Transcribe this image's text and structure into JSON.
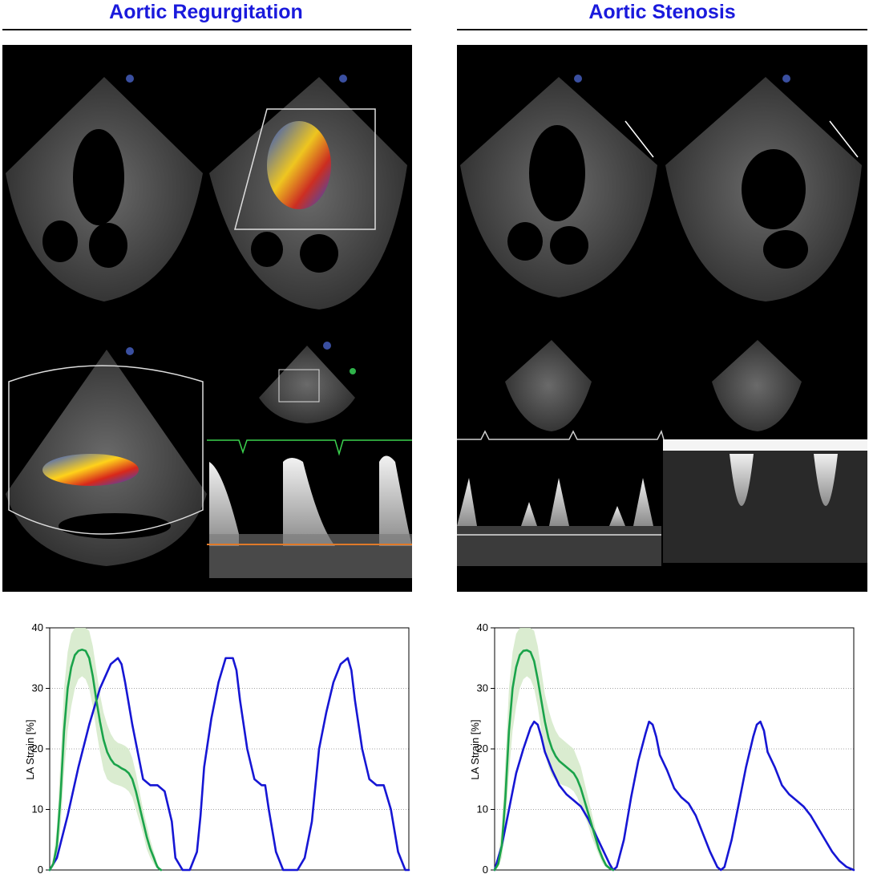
{
  "panels": [
    {
      "title": "Aortic Regurgitation"
    },
    {
      "title": "Aortic Stenosis"
    }
  ],
  "chart_data": [
    {
      "type": "line",
      "title": "",
      "xlabel": "",
      "ylabel": "LA Strain [%]",
      "ylim": [
        0,
        40
      ],
      "xlim": [
        0,
        100
      ],
      "yticks": [
        0,
        10,
        20,
        30,
        40
      ],
      "grid": true,
      "series": [
        {
          "color": "#1616d4",
          "x": [
            0,
            2,
            5,
            8,
            11,
            14,
            17,
            19,
            20,
            21,
            23,
            25,
            26,
            28,
            30,
            32,
            34,
            35,
            37,
            39,
            41,
            42,
            43,
            45,
            47,
            49,
            51,
            52,
            53,
            55,
            57,
            59,
            60,
            61,
            63,
            65,
            67,
            69,
            71,
            73,
            74,
            75,
            77,
            79,
            81,
            83,
            84,
            85,
            87,
            89,
            91,
            93,
            95,
            97,
            99,
            100
          ],
          "y": [
            0,
            2,
            9,
            17,
            24,
            30,
            34,
            35,
            34,
            31,
            24,
            18,
            15,
            14,
            14,
            13,
            8,
            2,
            0,
            0,
            3,
            9,
            17,
            25,
            31,
            35,
            35,
            33,
            28,
            20,
            15,
            14,
            14,
            10,
            3,
            0,
            0,
            0,
            2,
            8,
            14,
            20,
            26,
            31,
            34,
            35,
            33,
            28,
            20,
            15,
            14,
            14,
            10,
            3,
            0,
            0
          ]
        },
        {
          "color": "#1aa34a",
          "x": [
            0,
            1,
            2,
            3,
            4,
            5,
            6,
            7,
            8,
            9,
            10,
            11,
            12,
            13,
            14,
            15,
            16,
            17,
            18,
            19,
            20,
            21,
            22,
            23,
            24,
            25,
            26,
            27,
            28,
            29,
            29.5,
            30,
            30.5,
            31
          ],
          "y": [
            0,
            1,
            4,
            12,
            23,
            30,
            33.5,
            35.5,
            36.2,
            36.4,
            36.2,
            35,
            32,
            28,
            24.5,
            21.5,
            19.5,
            18.3,
            17.5,
            17.2,
            16.8,
            16.5,
            16,
            15,
            13,
            10.5,
            8,
            5.5,
            3.5,
            2,
            1.2,
            0.5,
            0.2,
            0
          ]
        },
        {
          "color": "#d4e9c8",
          "band": true,
          "x": [
            0,
            1,
            2,
            3,
            4,
            5,
            6,
            7,
            8,
            9,
            10,
            11,
            12,
            13,
            14,
            15,
            16,
            17,
            18,
            19,
            20,
            21,
            22,
            23,
            24,
            25,
            26,
            27,
            28,
            29,
            29.5,
            30,
            30.5,
            31
          ],
          "y_low": [
            0,
            0.5,
            2,
            7,
            16,
            23,
            27,
            30,
            31.5,
            32,
            31.5,
            30,
            27,
            23,
            19.5,
            16.5,
            15,
            14.5,
            14.2,
            14,
            13.8,
            13.5,
            13,
            12,
            10,
            8,
            6,
            3.5,
            2,
            1,
            0.5,
            0.2,
            0,
            0
          ],
          "y_high": [
            0,
            2,
            7,
            18,
            30,
            36,
            39,
            40,
            40,
            40,
            40,
            39.5,
            37,
            33,
            29,
            26,
            24,
            22.5,
            21.5,
            21,
            20.8,
            20.5,
            20,
            18.5,
            16,
            13,
            10,
            7.5,
            5,
            3,
            2,
            1,
            0.5,
            0
          ]
        }
      ]
    },
    {
      "type": "line",
      "title": "",
      "xlabel": "",
      "ylabel": "LA Strain [%]",
      "ylim": [
        0,
        40
      ],
      "xlim": [
        0,
        100
      ],
      "yticks": [
        0,
        10,
        20,
        30,
        40
      ],
      "grid": true,
      "series": [
        {
          "color": "#1616d4",
          "x": [
            0,
            2,
            4,
            6,
            8,
            10,
            11,
            12,
            13,
            14,
            15,
            16,
            18,
            20,
            22,
            24,
            26,
            28,
            30,
            32,
            33,
            34,
            36,
            38,
            40,
            42,
            43,
            44,
            45,
            46,
            48,
            50,
            52,
            54,
            56,
            58,
            60,
            62,
            63,
            64,
            66,
            68,
            70,
            72,
            73,
            74,
            75,
            76,
            78,
            80,
            82,
            84,
            86,
            88,
            90,
            92,
            94,
            96,
            98,
            100
          ],
          "y": [
            0,
            4,
            10,
            16,
            20,
            23.5,
            24.5,
            24,
            22,
            19.5,
            18,
            16.5,
            14,
            12.5,
            11.5,
            10.5,
            8.5,
            6,
            3.5,
            1,
            0,
            0.5,
            5,
            12,
            18,
            22.5,
            24.5,
            24,
            22,
            19,
            16.5,
            13.5,
            12,
            11,
            9,
            6,
            3,
            0.5,
            0,
            0.5,
            5,
            11,
            17,
            22,
            24,
            24.5,
            23,
            19.5,
            17,
            14,
            12.5,
            11.5,
            10.5,
            9,
            7,
            5,
            3,
            1.5,
            0.5,
            0
          ]
        },
        {
          "color": "#1aa34a",
          "x": [
            0,
            1,
            2,
            3,
            4,
            5,
            6,
            7,
            8,
            9,
            10,
            11,
            12,
            13,
            14,
            15,
            16,
            17,
            18,
            19,
            20,
            21,
            22,
            23,
            24,
            25,
            26,
            27,
            28,
            29,
            30,
            31,
            32,
            33
          ],
          "y": [
            0,
            1,
            4,
            12,
            23,
            30,
            33.5,
            35.5,
            36.2,
            36.3,
            36,
            34.5,
            31.5,
            28,
            24.5,
            21.8,
            20,
            18.8,
            18,
            17.5,
            17,
            16.5,
            16,
            15,
            13.5,
            11.5,
            9.5,
            7.5,
            5.5,
            3.5,
            2,
            0.8,
            0.3,
            0
          ]
        },
        {
          "color": "#d4e9c8",
          "band": true,
          "x": [
            0,
            1,
            2,
            3,
            4,
            5,
            6,
            7,
            8,
            9,
            10,
            11,
            12,
            13,
            14,
            15,
            16,
            17,
            18,
            19,
            20,
            21,
            22,
            23,
            24,
            25,
            26,
            27,
            28,
            29,
            30,
            31,
            32,
            33
          ],
          "y_low": [
            0,
            0.5,
            2,
            7,
            16,
            23,
            27,
            30,
            31.5,
            32,
            31.5,
            30,
            27,
            23,
            19.5,
            17,
            15.5,
            14.8,
            14.3,
            14,
            13.8,
            13.5,
            13,
            12,
            10.5,
            9,
            7.5,
            5.5,
            4,
            2.5,
            1.2,
            0.4,
            0.1,
            0
          ],
          "y_high": [
            0,
            2,
            7,
            18,
            30,
            36,
            39,
            40,
            40,
            40,
            40,
            39.5,
            37,
            33,
            29,
            26.5,
            24.5,
            23,
            22,
            21.5,
            21,
            20.5,
            20,
            18.5,
            17,
            14.5,
            12,
            9.5,
            7,
            4.5,
            2.8,
            1.3,
            0.5,
            0
          ]
        }
      ]
    }
  ]
}
